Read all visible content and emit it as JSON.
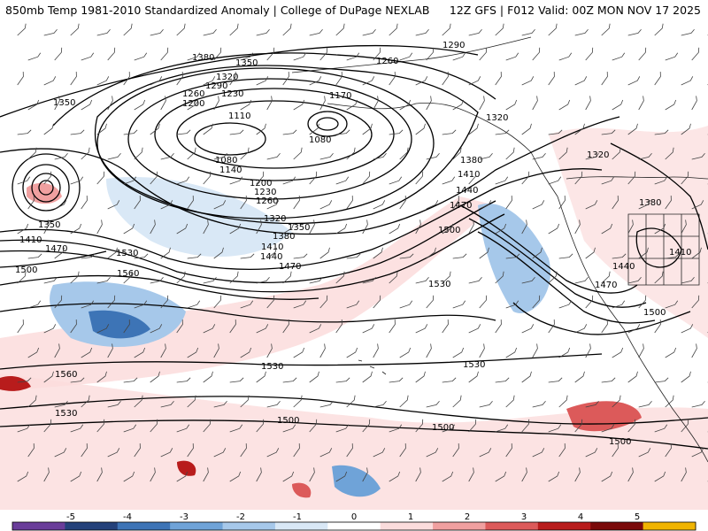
{
  "header": {
    "title": "850mb Temp 1981-2010 Standardized Anomaly | College of DuPage NEXLAB",
    "run_info": "12Z GFS | F012 Valid: 00Z MON NOV 17 2025"
  },
  "contours": {
    "labels": [
      "1290",
      "1380",
      "1350",
      "1260",
      "1320",
      "1290",
      "1260",
      "1230",
      "1200",
      "1170",
      "1110",
      "1320",
      "1080",
      "1350",
      "1080",
      "1140",
      "1380",
      "1200",
      "1410",
      "1230",
      "1440",
      "1260",
      "1320",
      "1470",
      "1320",
      "1350",
      "1350",
      "1380",
      "1500",
      "1410",
      "1440",
      "1470",
      "1410",
      "1470",
      "1530",
      "1380",
      "1500",
      "1560",
      "1440",
      "1410",
      "1530",
      "1470",
      "1500",
      "1530",
      "1530",
      "1560",
      "1530",
      "1500",
      "1500",
      "1500"
    ]
  },
  "colorbar": {
    "ticks": [
      "-5",
      "-4",
      "-3",
      "-2",
      "-1",
      "0",
      "1",
      "2",
      "3",
      "4",
      "5"
    ],
    "colors": [
      "#6a3d9a",
      "#24417a",
      "#3d74b6",
      "#6fa3d8",
      "#a6c8ea",
      "#d9e8f6",
      "#ffffff",
      "#fbdcdc",
      "#f0a0a0",
      "#dc5a5a",
      "#b81c1c",
      "#7a0a0a",
      "#f0b400"
    ]
  }
}
